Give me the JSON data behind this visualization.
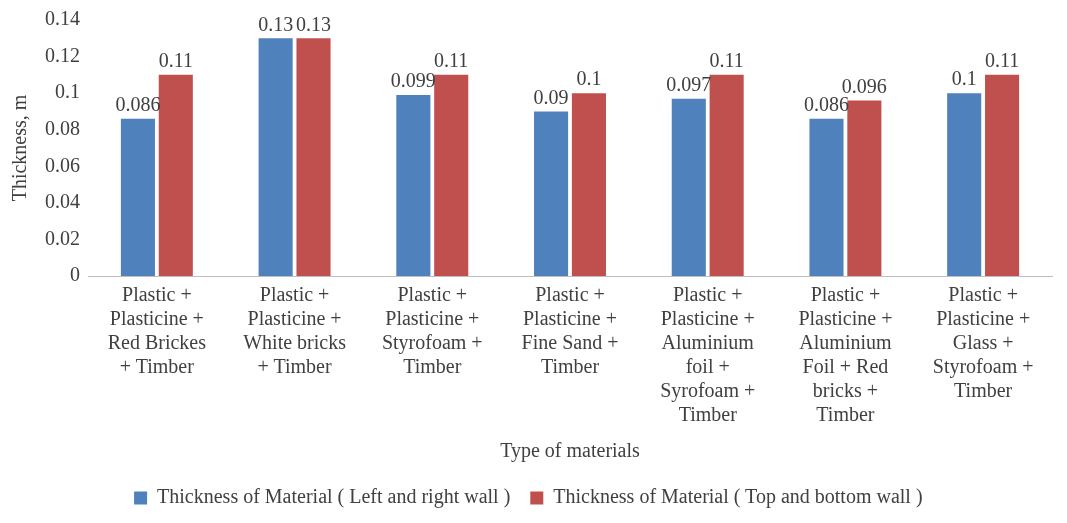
{
  "chart_data": {
    "type": "bar",
    "xlabel": "Type of materials",
    "ylabel": "Thickness, m",
    "categories": [
      "Plastic + Plasticine + Red Brickes + Timber",
      "Plastic + Plasticine + White bricks + Timber",
      "Plastic + Plasticine + Styrofoam + Timber",
      "Plastic + Plasticine + Fine Sand + Timber",
      "Plastic + Plasticine + Aluminium foil + Syrofoam + Timber",
      "Plastic + Plasticine + Aluminium Foil + Red bricks + Timber",
      "Plastic + Plasticine + Glass + Styrofoam + Timber"
    ],
    "series": [
      {
        "name": "Thickness of Material ( Left and right wall )",
        "color": "#4f81bd",
        "values": [
          0.086,
          0.13,
          0.099,
          0.09,
          0.097,
          0.086,
          0.1
        ]
      },
      {
        "name": "Thickness of Material ( Top and bottom wall )",
        "color": "#c0504d",
        "values": [
          0.11,
          0.13,
          0.11,
          0.1,
          0.11,
          0.096,
          0.11
        ]
      }
    ],
    "ylim": [
      0,
      0.14
    ],
    "yticks": [
      0,
      0.02,
      0.04,
      0.06,
      0.08,
      0.1,
      0.12,
      0.14
    ],
    "grid": false,
    "legend": "bottom",
    "data_labels": true
  }
}
